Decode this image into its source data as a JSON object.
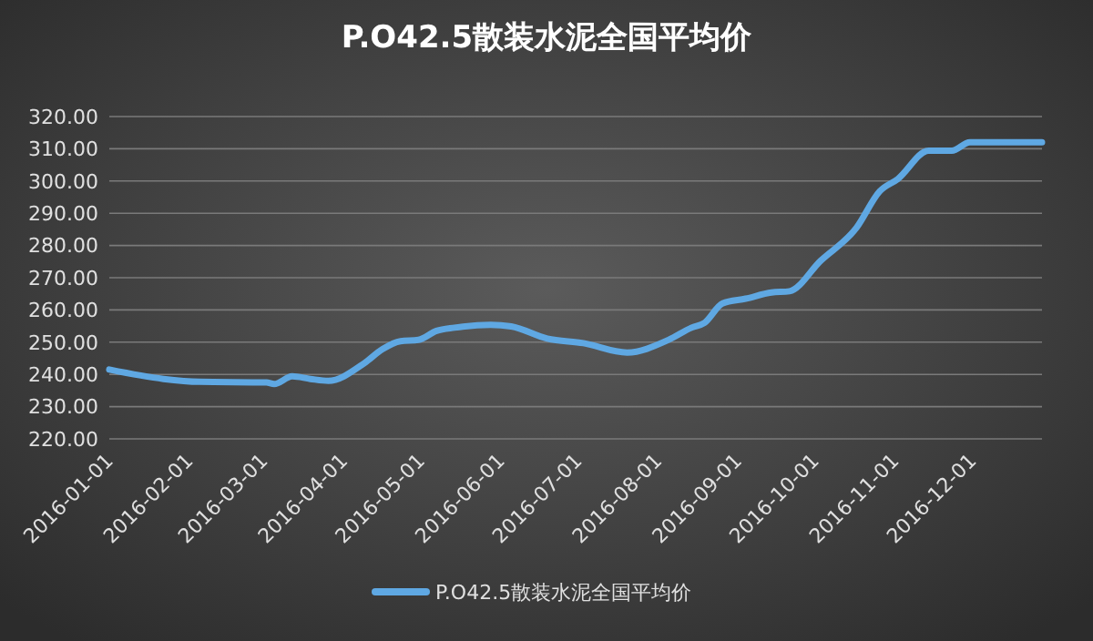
{
  "chart_data": {
    "type": "line",
    "title": "P.O42.5散装水泥全国平均价",
    "x": [
      "2016-01-01",
      "2016-01-22",
      "2016-02-05",
      "2016-03-02",
      "2016-03-05",
      "2016-03-12",
      "2016-03-19",
      "2016-03-26",
      "2016-04-09",
      "2016-04-16",
      "2016-04-23",
      "2016-04-30",
      "2016-05-07",
      "2016-05-14",
      "2016-05-28",
      "2016-06-05",
      "2016-06-19",
      "2016-07-03",
      "2016-07-20",
      "2016-08-05",
      "2016-08-14",
      "2016-08-19",
      "2016-08-26",
      "2016-09-04",
      "2016-09-14",
      "2016-09-21",
      "2016-10-03",
      "2016-10-17",
      "2016-10-26",
      "2016-11-02",
      "2016-11-14",
      "2016-11-23",
      "2016-11-30",
      "2016-12-28"
    ],
    "series": [
      {
        "name": "P.O42.5散装水泥全国平均价",
        "color": "#5fa8e3",
        "values": [
          241.5,
          238.6,
          237.7,
          237.5,
          237,
          239.4,
          238.6,
          238,
          243.5,
          247.8,
          250.3,
          250.7,
          253.5,
          254.5,
          255.4,
          254.9,
          251.1,
          249.7,
          246.8,
          250.7,
          254.5,
          256,
          262,
          263.5,
          265.4,
          265.8,
          275.2,
          285.5,
          296.8,
          300.6,
          309.4,
          309.4,
          312,
          312
        ]
      }
    ],
    "xlim": [
      "2016-01-01",
      "2016-12-28"
    ],
    "xticks": [
      "2016-01-01",
      "2016-02-01",
      "2016-03-01",
      "2016-04-01",
      "2016-05-01",
      "2016-06-01",
      "2016-07-01",
      "2016-08-01",
      "2016-09-01",
      "2016-10-01",
      "2016-11-01",
      "2016-12-01"
    ],
    "ylim": [
      220,
      320
    ],
    "yticks": [
      {
        "value": 220,
        "label": "220.00"
      },
      {
        "value": 230,
        "label": "230.00"
      },
      {
        "value": 240,
        "label": "240.00"
      },
      {
        "value": 250,
        "label": "250.00"
      },
      {
        "value": 260,
        "label": "260.00"
      },
      {
        "value": 270,
        "label": "270.00"
      },
      {
        "value": 280,
        "label": "280.00"
      },
      {
        "value": 290,
        "label": "290.00"
      },
      {
        "value": 300,
        "label": "300.00"
      },
      {
        "value": 310,
        "label": "310.00"
      },
      {
        "value": 320,
        "label": "320.00"
      }
    ],
    "grid": "y",
    "legend": "bottom",
    "marker": "none",
    "line_style": "solid"
  }
}
